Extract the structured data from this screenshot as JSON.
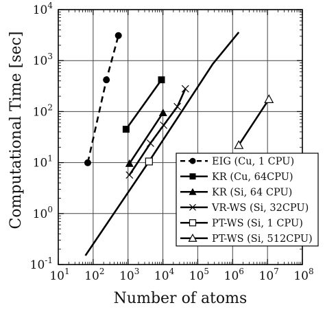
{
  "chart_data": {
    "type": "line",
    "xlabel": "Number of atoms",
    "ylabel": "Computational Time [sec]",
    "xscale": "log",
    "yscale": "log",
    "xlim": [
      10,
      100000000
    ],
    "ylim": [
      0.1,
      10000
    ],
    "grid": "major",
    "legend_position": "lower-right",
    "x_ticks": [
      {
        "value": 10,
        "base": "10",
        "exp": "1"
      },
      {
        "value": 100,
        "base": "10",
        "exp": "2"
      },
      {
        "value": 1000,
        "base": "10",
        "exp": "3"
      },
      {
        "value": 10000,
        "base": "10",
        "exp": "4"
      },
      {
        "value": 100000,
        "base": "10",
        "exp": "5"
      },
      {
        "value": 1000000,
        "base": "10",
        "exp": "6"
      },
      {
        "value": 10000000,
        "base": "10",
        "exp": "7"
      },
      {
        "value": 100000000,
        "base": "10",
        "exp": "8"
      }
    ],
    "y_ticks": [
      {
        "value": 0.1,
        "base": "10",
        "exp": "-1"
      },
      {
        "value": 1,
        "base": "10",
        "exp": "0"
      },
      {
        "value": 10,
        "base": "10",
        "exp": "1"
      },
      {
        "value": 100,
        "base": "10",
        "exp": "2"
      },
      {
        "value": 1000,
        "base": "10",
        "exp": "3"
      },
      {
        "value": 10000,
        "base": "10",
        "exp": "4"
      }
    ],
    "series": [
      {
        "name": "EIG (Cu, 1 CPU)",
        "marker": "circle",
        "dash": "dashed",
        "points": [
          [
            70,
            9.9
          ],
          [
            240,
            420
          ],
          [
            530,
            3100
          ]
        ]
      },
      {
        "name": "KR (Cu, 64CPU)",
        "marker": "square",
        "dash": "solid",
        "points": [
          [
            880,
            45
          ],
          [
            9100,
            420
          ]
        ]
      },
      {
        "name": "KR  (Si, 64 CPU)",
        "marker": "triangle",
        "dash": "solid",
        "points": [
          [
            1100,
            9.6
          ],
          [
            10100,
            95
          ]
        ]
      },
      {
        "name": "VR-WS (Si, 32CPU)",
        "marker": "cross",
        "dash": "solid",
        "points": [
          [
            1100,
            5.7
          ],
          [
            4400,
            24
          ],
          [
            10500,
            54
          ],
          [
            26000,
            125
          ],
          [
            44000,
            280
          ]
        ]
      },
      {
        "name": "PT-WS (Si, 1 CPU)",
        "marker": "open-square",
        "dash": "solid",
        "points": [
          [
            60,
            0.15
          ],
          [
            4000,
            10.5
          ],
          [
            270000,
            860
          ],
          [
            1500000,
            3600
          ]
        ],
        "marked_points": [
          [
            4000,
            10.5
          ]
        ]
      },
      {
        "name": "PT-WS (Si, 512CPU)",
        "marker": "open-triangle",
        "dash": "solid",
        "points": [
          [
            1500000,
            22
          ],
          [
            11000000,
            175
          ]
        ]
      }
    ]
  }
}
